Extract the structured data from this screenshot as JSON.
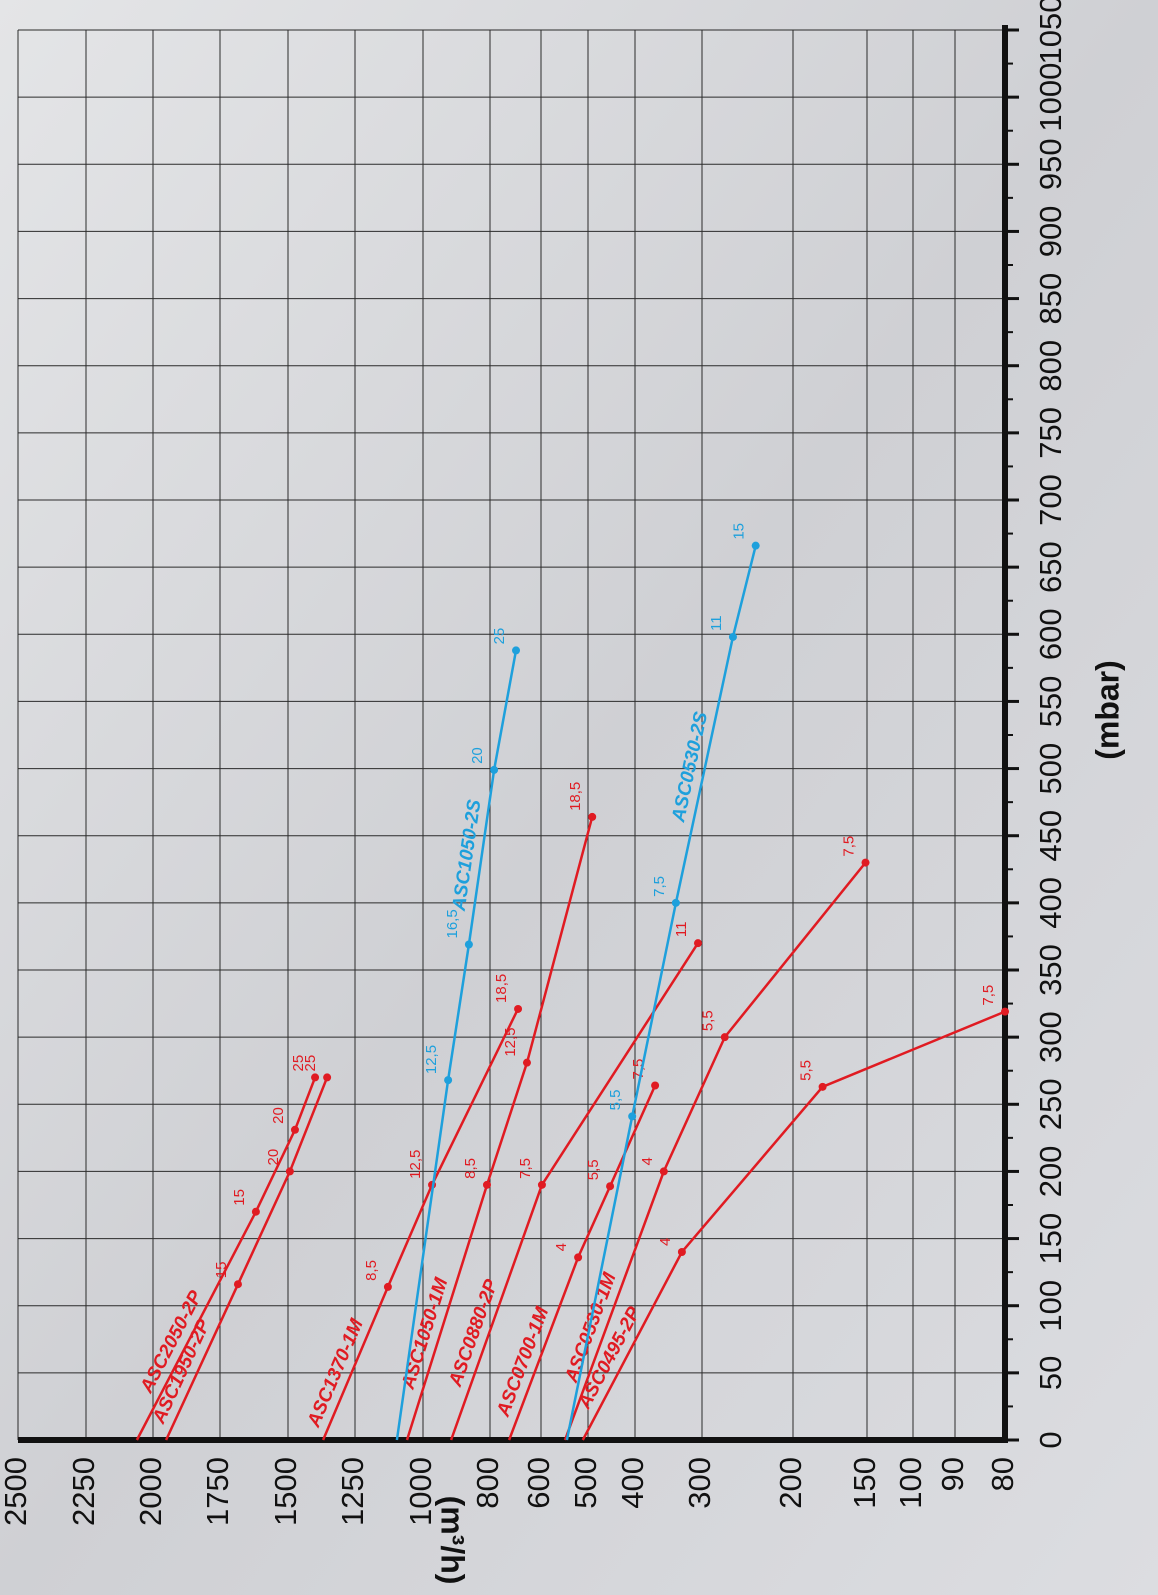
{
  "chart_data": {
    "type": "line",
    "x_label": "(mbar)",
    "y_label": "(m³/h)",
    "xlim": [
      0,
      1050
    ],
    "xticks": [
      0,
      50,
      100,
      150,
      200,
      250,
      300,
      350,
      400,
      450,
      500,
      550,
      600,
      650,
      700,
      750,
      800,
      850,
      900,
      950,
      1000,
      1050
    ],
    "ylim": [
      80,
      2500
    ],
    "yticks": [
      2500,
      2250,
      2000,
      1750,
      1500,
      1250,
      1000,
      800,
      600,
      500,
      400,
      300,
      200,
      150,
      100,
      90,
      80
    ],
    "grid": true,
    "series": [
      {
        "name": "ASC2050-2P",
        "color": "#e01b22",
        "x": [
          0,
          170,
          231,
          270
        ],
        "values": [
          2060,
          1618,
          1474,
          1399
        ],
        "point_labels": [
          null,
          "15",
          "20",
          "25"
        ]
      },
      {
        "name": "ASC1950-2P",
        "color": "#e01b22",
        "x": [
          0,
          116,
          200,
          270
        ],
        "values": [
          1951,
          1684,
          1493,
          1354
        ],
        "point_labels": [
          null,
          "15",
          "20",
          "25"
        ]
      },
      {
        "name": "ASC1370-1M",
        "color": "#e01b22",
        "x": [
          0,
          114,
          190,
          321
        ],
        "values": [
          1369,
          1129,
          973,
          690
        ],
        "point_labels": [
          null,
          "8,5",
          "12,5",
          "18,5"
        ]
      },
      {
        "name": "ASC1050-1M",
        "color": "#e01b22",
        "x": [
          0,
          190,
          281,
          464
        ],
        "values": [
          1059,
          809,
          655,
          491
        ],
        "point_labels": [
          null,
          "8,5",
          "12,5",
          "18,5"
        ]
      },
      {
        "name": "ASC0880-2P",
        "color": "#e01b22",
        "x": [
          0,
          190,
          370
        ],
        "values": [
          916,
          598,
          306
        ],
        "point_labels": [
          null,
          "7,5",
          "11"
        ]
      },
      {
        "name": "ASC0700-1M",
        "color": "#e01b22",
        "x": [
          0,
          136,
          189,
          264
        ],
        "values": [
          725,
          521,
          453,
          370
        ],
        "point_labels": [
          null,
          "4",
          "5,5",
          "7,5"
        ]
      },
      {
        "name": "ASC0530-1M",
        "color": "#e01b22",
        "x": [
          0,
          200,
          300,
          430
        ],
        "values": [
          549,
          357,
          275,
          151
        ],
        "point_labels": [
          null,
          "4",
          "5,5",
          "7,5"
        ]
      },
      {
        "name": "ASC0495-2P",
        "color": "#e01b22",
        "x": [
          0,
          140,
          263,
          319
        ],
        "values": [
          511,
          330,
          180,
          80
        ],
        "point_labels": [
          null,
          "4",
          "5,5",
          "7,5"
        ]
      },
      {
        "name": "ASC1050-2S",
        "color": "#1ea0dc",
        "x": [
          0,
          268,
          369,
          499,
          588
        ],
        "values": [
          1096,
          925,
          863,
          784,
          698
        ],
        "point_labels": [
          null,
          "12,5",
          "16,5",
          "20",
          "25"
        ]
      },
      {
        "name": "ASC0530-2S",
        "color": "#1ea0dc",
        "x": [
          0,
          241,
          400,
          598,
          666
        ],
        "values": [
          545,
          406,
          339,
          266,
          241
        ],
        "point_labels": [
          null,
          "5,5",
          "7,5",
          "11",
          "15"
        ]
      }
    ]
  }
}
